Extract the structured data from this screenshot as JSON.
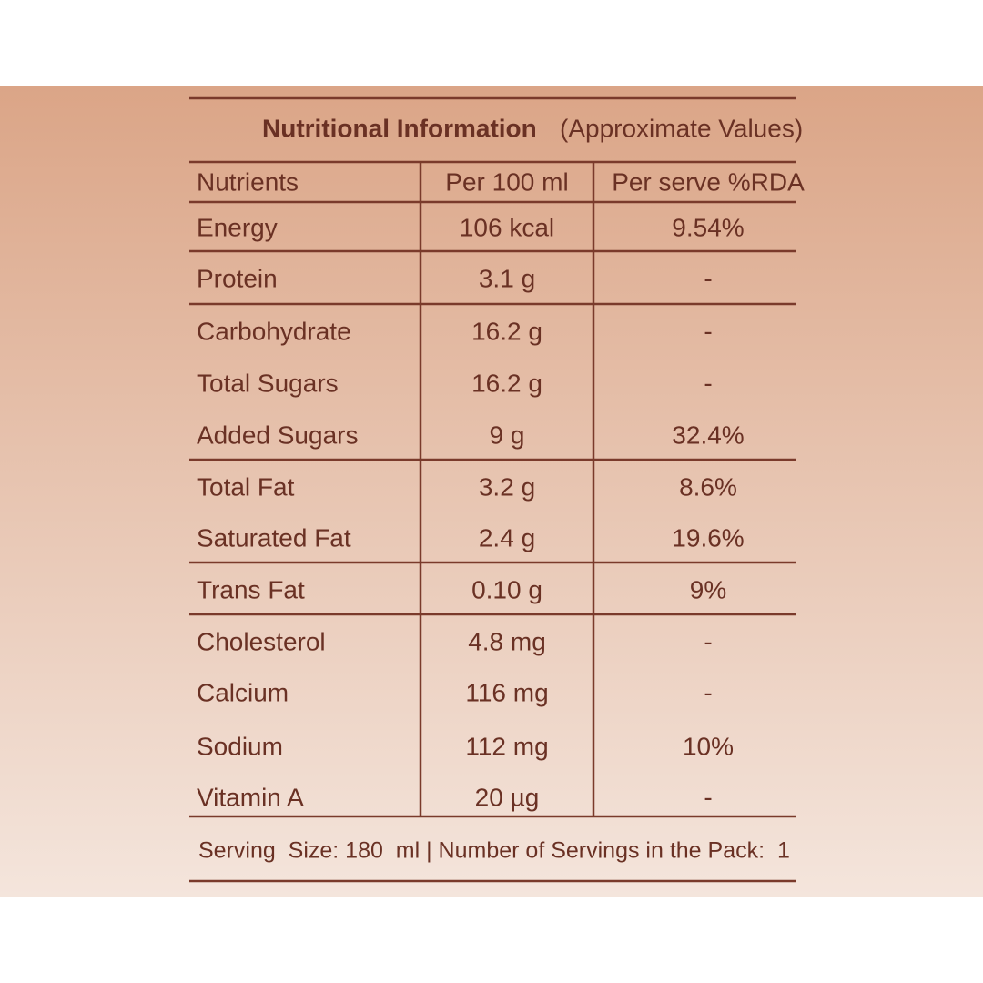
{
  "header": {
    "title_bold": "Nutritional Information",
    "title_rest": "(Approximate Values)"
  },
  "table": {
    "columns": [
      "Nutrients",
      "Per 100 ml",
      "Per serve %RDA"
    ],
    "rows": [
      [
        "Energy",
        "106 kcal",
        "9.54%"
      ],
      [
        "Protein",
        "3.1 g",
        "-"
      ],
      [
        "Carbohydrate",
        "16.2 g",
        "-"
      ],
      [
        "Total Sugars",
        "16.2 g",
        "-"
      ],
      [
        "Added Sugars",
        "9 g",
        "32.4%"
      ],
      [
        "Total Fat",
        "3.2 g",
        "8.6%"
      ],
      [
        "Saturated Fat",
        "2.4 g",
        "19.6%"
      ],
      [
        "Trans Fat",
        "0.10 g",
        "9%"
      ],
      [
        "Cholesterol",
        "4.8 mg",
        "-"
      ],
      [
        "Calcium",
        "116 mg",
        "-"
      ],
      [
        "Sodium",
        "112 mg",
        "10%"
      ],
      [
        "Vitamin A",
        "20 µg",
        "-"
      ]
    ]
  },
  "footer": {
    "text": "Serving  Size: 180  ml | Number of Servings in the Pack:  1"
  }
}
